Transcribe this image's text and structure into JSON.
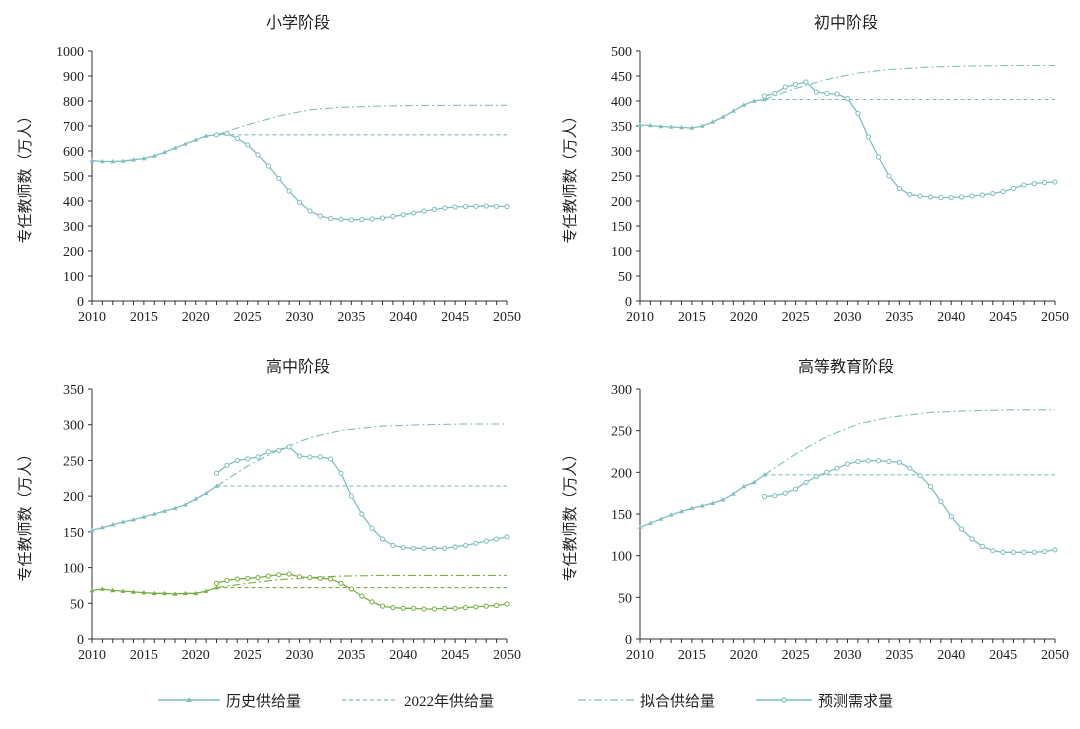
{
  "colors": {
    "teal": "#7fbfbf",
    "green": "#76b043",
    "axis": "#333333",
    "text": "#222222"
  },
  "legend": {
    "history": "历史供给量",
    "year_prefix": "2022",
    "year_suffix": "年供给量",
    "fit": "拟合供给量",
    "demand": "预测需求量"
  },
  "chart_data": [
    {
      "type": "line",
      "title": "小学阶段",
      "ylabel": "专任教师数（万人）",
      "xlim": [
        2010,
        2050
      ],
      "ylim": [
        0,
        1000
      ],
      "xticks": [
        "2010",
        "2015",
        "2020",
        "2025",
        "2030",
        "2035",
        "2040",
        "2045",
        "2050"
      ],
      "yticks": [
        "0",
        "100",
        "200",
        "300",
        "400",
        "500",
        "600",
        "700",
        "800",
        "900",
        "1000"
      ],
      "series": [
        {
          "name": "历史供给量",
          "kind": "history",
          "color": "#7fbfbf",
          "x": [
            2010,
            2011,
            2012,
            2013,
            2014,
            2015,
            2016,
            2017,
            2018,
            2019,
            2020,
            2021,
            2022
          ],
          "values": [
            562,
            558,
            558,
            560,
            565,
            570,
            580,
            595,
            612,
            628,
            645,
            660,
            665
          ]
        },
        {
          "name": "2022年供给量",
          "kind": "const",
          "color": "#7fbfbf",
          "x": [
            2022,
            2050
          ],
          "values": [
            665,
            665
          ]
        },
        {
          "name": "拟合供给量",
          "kind": "fit",
          "color": "#7fbfbf",
          "x": [
            2022,
            2025,
            2028,
            2031,
            2034,
            2038,
            2042,
            2046,
            2050
          ],
          "values": [
            665,
            705,
            740,
            765,
            775,
            780,
            782,
            783,
            783
          ]
        },
        {
          "name": "预测需求量",
          "kind": "demand",
          "color": "#7fbfbf",
          "x": [
            2022,
            2023,
            2024,
            2025,
            2026,
            2027,
            2028,
            2029,
            2030,
            2031,
            2032,
            2033,
            2034,
            2035,
            2036,
            2037,
            2038,
            2039,
            2040,
            2041,
            2042,
            2043,
            2044,
            2045,
            2046,
            2047,
            2048,
            2049,
            2050
          ],
          "values": [
            665,
            670,
            650,
            625,
            585,
            540,
            490,
            440,
            395,
            360,
            340,
            330,
            327,
            325,
            326,
            328,
            332,
            338,
            345,
            352,
            360,
            366,
            372,
            376,
            378,
            379,
            380,
            379,
            378
          ]
        }
      ]
    },
    {
      "type": "line",
      "title": "初中阶段",
      "ylabel": "专任教师数（万人）",
      "xlim": [
        2010,
        2050
      ],
      "ylim": [
        0,
        500
      ],
      "xticks": [
        "2010",
        "2015",
        "2020",
        "2025",
        "2030",
        "2035",
        "2040",
        "2045",
        "2050"
      ],
      "yticks": [
        "0",
        "50",
        "100",
        "150",
        "200",
        "250",
        "300",
        "350",
        "400",
        "450",
        "500"
      ],
      "series": [
        {
          "name": "历史供给量",
          "kind": "history",
          "color": "#7fbfbf",
          "x": [
            2010,
            2011,
            2012,
            2013,
            2014,
            2015,
            2016,
            2017,
            2018,
            2019,
            2020,
            2021,
            2022
          ],
          "values": [
            352,
            351,
            349,
            348,
            347,
            346,
            350,
            358,
            368,
            380,
            392,
            400,
            403
          ]
        },
        {
          "name": "2022年供给量",
          "kind": "const",
          "color": "#7fbfbf",
          "x": [
            2022,
            2050
          ],
          "values": [
            403,
            403
          ]
        },
        {
          "name": "拟合供给量",
          "kind": "fit",
          "color": "#7fbfbf",
          "x": [
            2022,
            2025,
            2028,
            2031,
            2034,
            2038,
            2042,
            2046,
            2050
          ],
          "values": [
            403,
            425,
            443,
            456,
            463,
            468,
            470,
            471,
            471
          ]
        },
        {
          "name": "预测需求量",
          "kind": "demand",
          "color": "#7fbfbf",
          "x": [
            2022,
            2023,
            2024,
            2025,
            2026,
            2027,
            2028,
            2029,
            2030,
            2031,
            2032,
            2033,
            2034,
            2035,
            2036,
            2037,
            2038,
            2039,
            2040,
            2041,
            2042,
            2043,
            2044,
            2045,
            2046,
            2047,
            2048,
            2049,
            2050
          ],
          "values": [
            410,
            415,
            428,
            433,
            438,
            418,
            415,
            414,
            405,
            375,
            328,
            288,
            250,
            225,
            213,
            210,
            208,
            207,
            207,
            208,
            210,
            212,
            215,
            219,
            225,
            232,
            235,
            237,
            238
          ]
        }
      ]
    },
    {
      "type": "line",
      "title": "高中阶段",
      "ylabel": "专任教师数（万人）",
      "xlim": [
        2010,
        2050
      ],
      "ylim": [
        0,
        350
      ],
      "xticks": [
        "2010",
        "2015",
        "2020",
        "2025",
        "2030",
        "2035",
        "2040",
        "2045",
        "2050"
      ],
      "yticks": [
        "0",
        "50",
        "100",
        "150",
        "200",
        "250",
        "300",
        "350"
      ],
      "series": [
        {
          "name": "历史供给量",
          "kind": "history",
          "color": "#7fbfbf",
          "x": [
            2010,
            2011,
            2012,
            2013,
            2014,
            2015,
            2016,
            2017,
            2018,
            2019,
            2020,
            2021,
            2022
          ],
          "values": [
            152,
            156,
            160,
            164,
            167,
            171,
            175,
            179,
            183,
            188,
            196,
            204,
            214
          ]
        },
        {
          "name": "2022年供给量",
          "kind": "const",
          "color": "#7fbfbf",
          "x": [
            2022,
            2050
          ],
          "values": [
            214,
            214
          ]
        },
        {
          "name": "拟合供给量",
          "kind": "fit",
          "color": "#7fbfbf",
          "x": [
            2022,
            2025,
            2028,
            2031,
            2034,
            2038,
            2042,
            2046,
            2050
          ],
          "values": [
            214,
            242,
            265,
            282,
            292,
            298,
            300,
            301,
            301
          ]
        },
        {
          "name": "预测需求量",
          "kind": "demand",
          "color": "#7fbfbf",
          "x": [
            2022,
            2023,
            2024,
            2025,
            2026,
            2027,
            2028,
            2029,
            2030,
            2031,
            2032,
            2033,
            2034,
            2035,
            2036,
            2037,
            2038,
            2039,
            2040,
            2041,
            2042,
            2043,
            2044,
            2045,
            2046,
            2047,
            2048,
            2049,
            2050
          ],
          "values": [
            232,
            243,
            250,
            252,
            255,
            262,
            264,
            269,
            256,
            255,
            255,
            252,
            232,
            200,
            175,
            155,
            140,
            131,
            128,
            127,
            127,
            127,
            127,
            129,
            131,
            134,
            137,
            140,
            143
          ]
        },
        {
          "name": "历史供给量",
          "kind": "history",
          "color": "#76b043",
          "x": [
            2010,
            2011,
            2012,
            2013,
            2014,
            2015,
            2016,
            2017,
            2018,
            2019,
            2020,
            2021,
            2022
          ],
          "values": [
            68,
            70,
            68,
            67,
            66,
            65,
            64,
            64,
            63,
            64,
            64,
            67,
            72
          ]
        },
        {
          "name": "2022年供给量",
          "kind": "const",
          "color": "#76b043",
          "x": [
            2022,
            2050
          ],
          "values": [
            72,
            72
          ]
        },
        {
          "name": "拟合供给量",
          "kind": "fit",
          "color": "#76b043",
          "x": [
            2022,
            2025,
            2028,
            2031,
            2034,
            2038,
            2042,
            2046,
            2050
          ],
          "values": [
            72,
            78,
            83,
            86,
            88,
            89,
            89,
            89,
            89
          ]
        },
        {
          "name": "预测需求量",
          "kind": "demand",
          "color": "#76b043",
          "x": [
            2022,
            2023,
            2024,
            2025,
            2026,
            2027,
            2028,
            2029,
            2030,
            2031,
            2032,
            2033,
            2034,
            2035,
            2036,
            2037,
            2038,
            2039,
            2040,
            2041,
            2042,
            2043,
            2044,
            2045,
            2046,
            2047,
            2048,
            2049,
            2050
          ],
          "values": [
            78,
            82,
            84,
            85,
            86,
            88,
            90,
            91,
            87,
            86,
            85,
            84,
            78,
            70,
            60,
            52,
            46,
            44,
            43,
            43,
            42,
            42,
            43,
            43,
            44,
            45,
            46,
            47,
            49
          ]
        }
      ]
    },
    {
      "type": "line",
      "title": "高等教育阶段",
      "ylabel": "专任教师数（万人）",
      "xlim": [
        2010,
        2050
      ],
      "ylim": [
        0,
        300
      ],
      "xticks": [
        "2010",
        "2015",
        "2020",
        "2025",
        "2030",
        "2035",
        "2040",
        "2045",
        "2050"
      ],
      "yticks": [
        "0",
        "50",
        "100",
        "150",
        "200",
        "250",
        "300"
      ],
      "series": [
        {
          "name": "历史供给量",
          "kind": "history",
          "color": "#7fbfbf",
          "x": [
            2010,
            2011,
            2012,
            2013,
            2014,
            2015,
            2016,
            2017,
            2018,
            2019,
            2020,
            2021,
            2022
          ],
          "values": [
            134,
            139,
            144,
            149,
            153,
            157,
            160,
            163,
            167,
            174,
            183,
            188,
            197
          ]
        },
        {
          "name": "2022年供给量",
          "kind": "const",
          "color": "#7fbfbf",
          "x": [
            2022,
            2050
          ],
          "values": [
            197,
            197
          ]
        },
        {
          "name": "拟合供给量",
          "kind": "fit",
          "color": "#7fbfbf",
          "x": [
            2022,
            2025,
            2028,
            2031,
            2034,
            2038,
            2042,
            2046,
            2050
          ],
          "values": [
            197,
            222,
            243,
            258,
            266,
            272,
            274,
            275,
            275
          ]
        },
        {
          "name": "预测需求量",
          "kind": "demand",
          "color": "#7fbfbf",
          "x": [
            2022,
            2023,
            2024,
            2025,
            2026,
            2027,
            2028,
            2029,
            2030,
            2031,
            2032,
            2033,
            2034,
            2035,
            2036,
            2037,
            2038,
            2039,
            2040,
            2041,
            2042,
            2043,
            2044,
            2045,
            2046,
            2047,
            2048,
            2049,
            2050
          ],
          "values": [
            171,
            172,
            175,
            180,
            188,
            195,
            200,
            205,
            210,
            213,
            214,
            214,
            213,
            212,
            205,
            196,
            183,
            165,
            147,
            132,
            120,
            111,
            106,
            104,
            104,
            104,
            104,
            105,
            107
          ]
        }
      ]
    }
  ]
}
